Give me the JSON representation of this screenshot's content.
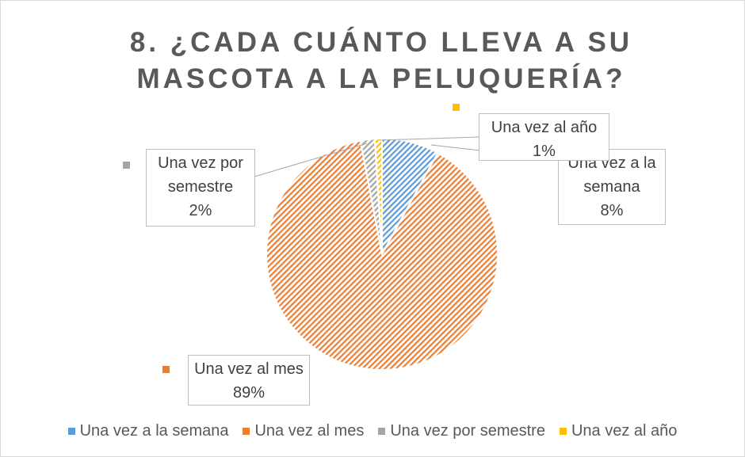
{
  "chart_data": {
    "type": "pie",
    "title": "8. ¿CADA CUÁNTO LLEVA A SU MASCOTA A LA PELUQUERÍA?",
    "categories": [
      "Una vez a la semana",
      "Una vez al mes",
      "Una vez por semestre",
      "Una vez al año"
    ],
    "values": [
      8,
      89,
      2,
      1
    ],
    "value_labels": [
      "8%",
      "89%",
      "2%",
      "1%"
    ],
    "colors": [
      "#5b9bd5",
      "#ed7d31",
      "#a5a5a5",
      "#ffc000"
    ],
    "legend": "bottom"
  }
}
